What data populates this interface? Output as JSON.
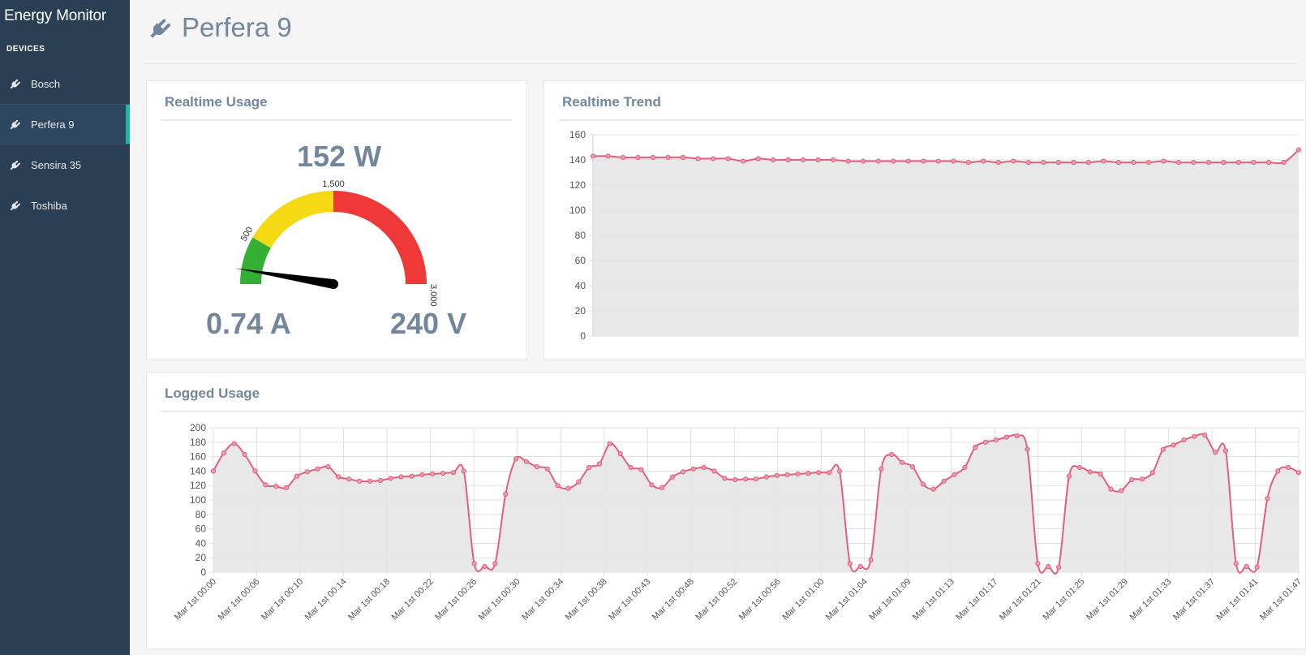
{
  "app": {
    "title": "Energy Monitor",
    "section_label": "DEVICES"
  },
  "sidebar": {
    "items": [
      {
        "label": "Bosch",
        "icon": "plug-icon",
        "active": false
      },
      {
        "label": "Perfera 9",
        "icon": "plug-icon",
        "active": true
      },
      {
        "label": "Sensira 35",
        "icon": "plug-icon",
        "active": false
      },
      {
        "label": "Toshiba",
        "icon": "plug-icon",
        "active": false
      }
    ]
  },
  "header": {
    "title": "Perfera 9",
    "icon": "plug-icon"
  },
  "colors": {
    "sidebar_bg": "#2a3f54",
    "accent": "#1abb9c",
    "line": "#e0607e",
    "fill": "#e5e5e5",
    "gauge_green": "#33b033",
    "gauge_yellow": "#f6d915",
    "gauge_red": "#ef3939"
  },
  "realtime_usage": {
    "title": "Realtime Usage",
    "power": "152 W",
    "current": "0.74 A",
    "voltage": "240 V",
    "gauge": {
      "min": 0,
      "max": 3000,
      "value": 152,
      "bands": [
        {
          "from": 0,
          "to": 500,
          "color": "#33b033"
        },
        {
          "from": 500,
          "to": 1500,
          "color": "#f6d915"
        },
        {
          "from": 1500,
          "to": 3000,
          "color": "#ef3939"
        }
      ],
      "tick_labels": [
        "500",
        "1,500",
        "3,000"
      ]
    }
  },
  "realtime_trend": {
    "title": "Realtime Trend",
    "chart_data": {
      "type": "area",
      "ylim": [
        0,
        160
      ],
      "yticks": [
        0,
        20,
        40,
        60,
        80,
        100,
        120,
        140,
        160
      ],
      "values": [
        143,
        143,
        142,
        142,
        142,
        142,
        142,
        141,
        141,
        141,
        139,
        141,
        140,
        140,
        140,
        140,
        140,
        139,
        139,
        139,
        139,
        139,
        139,
        139,
        139,
        138,
        139,
        138,
        139,
        138,
        138,
        138,
        138,
        138,
        139,
        138,
        138,
        138,
        139,
        138,
        138,
        138,
        138,
        138,
        138,
        138,
        138,
        148
      ]
    }
  },
  "logged_usage": {
    "title": "Logged Usage",
    "chart_data": {
      "type": "area",
      "ylim": [
        0,
        200
      ],
      "yticks": [
        0,
        20,
        40,
        60,
        80,
        100,
        120,
        140,
        160,
        180,
        200
      ],
      "x_labels": [
        "Mar 1st 00:00",
        "Mar 1st 00:06",
        "Mar 1st 00:10",
        "Mar 1st 00:14",
        "Mar 1st 00:18",
        "Mar 1st 00:22",
        "Mar 1st 00:26",
        "Mar 1st 00:30",
        "Mar 1st 00:34",
        "Mar 1st 00:38",
        "Mar 1st 00:43",
        "Mar 1st 00:48",
        "Mar 1st 00:52",
        "Mar 1st 00:56",
        "Mar 1st 01:00",
        "Mar 1st 01:04",
        "Mar 1st 01:09",
        "Mar 1st 01:13",
        "Mar 1st 01:17",
        "Mar 1st 01:21",
        "Mar 1st 01:25",
        "Mar 1st 01:29",
        "Mar 1st 01:33",
        "Mar 1st 01:37",
        "Mar 1st 01:41",
        "Mar 1st 01:47"
      ],
      "values": [
        140,
        165,
        178,
        163,
        140,
        121,
        119,
        117,
        133,
        139,
        143,
        146,
        132,
        129,
        126,
        126,
        127,
        130,
        132,
        133,
        135,
        136,
        137,
        138,
        140,
        12,
        8,
        12,
        108,
        157,
        153,
        146,
        143,
        120,
        116,
        125,
        145,
        150,
        178,
        164,
        145,
        142,
        121,
        117,
        132,
        139,
        143,
        145,
        140,
        130,
        128,
        129,
        129,
        132,
        134,
        135,
        136,
        137,
        138,
        138,
        140,
        12,
        8,
        17,
        143,
        163,
        152,
        146,
        122,
        115,
        126,
        135,
        145,
        173,
        180,
        183,
        187,
        189,
        170,
        12,
        8,
        7,
        133,
        145,
        139,
        136,
        115,
        113,
        128,
        129,
        138,
        170,
        176,
        183,
        188,
        190,
        166,
        168,
        12,
        8,
        7,
        102,
        140,
        145,
        138
      ]
    }
  }
}
